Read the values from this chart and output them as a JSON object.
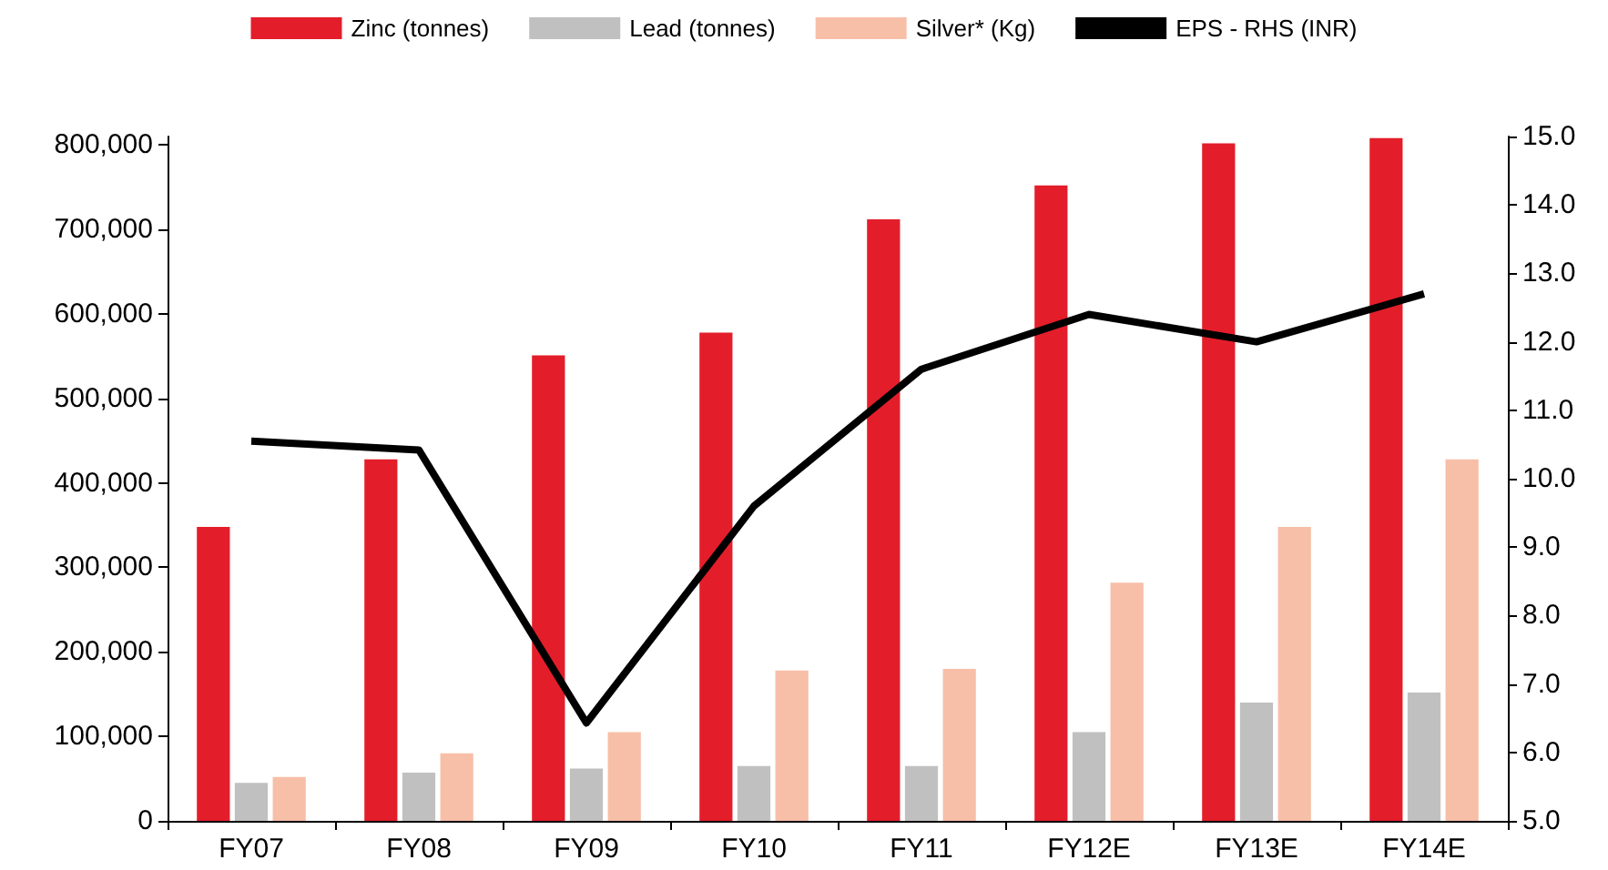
{
  "chart_data": {
    "type": "bar",
    "categories": [
      "FY07",
      "FY08",
      "FY09",
      "FY10",
      "FY11",
      "FY12E",
      "FY13E",
      "FY14E"
    ],
    "series": [
      {
        "name": "Zinc (tonnes)",
        "color": "#e31e2a",
        "values": [
          348000,
          428000,
          551000,
          578000,
          712000,
          752000,
          802000,
          808000
        ]
      },
      {
        "name": "Lead (tonnes)",
        "color": "#c0c0c0",
        "values": [
          45000,
          57000,
          62000,
          65000,
          65000,
          105000,
          140000,
          152000
        ]
      },
      {
        "name": "Silver* (Kg)",
        "color": "#f7bfa8",
        "values": [
          52000,
          80000,
          105000,
          178000,
          180000,
          282000,
          348000,
          428000
        ]
      },
      {
        "name": "EPS - RHS (INR)",
        "color": "#000000",
        "type": "line",
        "axis": "y2",
        "values": [
          10.55,
          10.42,
          6.43,
          9.6,
          11.6,
          12.4,
          12.0,
          12.7
        ]
      }
    ],
    "ylim": [
      0,
      810000
    ],
    "yticks": [
      {
        "value": 0,
        "label": "0"
      },
      {
        "value": 100000,
        "label": "100,000"
      },
      {
        "value": 200000,
        "label": "200,000"
      },
      {
        "value": 300000,
        "label": "300,000"
      },
      {
        "value": 400000,
        "label": "400,000"
      },
      {
        "value": 500000,
        "label": "500,000"
      },
      {
        "value": 600000,
        "label": "600,000"
      },
      {
        "value": 700000,
        "label": "700,000"
      },
      {
        "value": 800000,
        "label": "800,000"
      }
    ],
    "y2lim": [
      5,
      15
    ],
    "y2ticks": [
      {
        "value": 5,
        "label": "5.0"
      },
      {
        "value": 6,
        "label": "6.0"
      },
      {
        "value": 7,
        "label": "7.0"
      },
      {
        "value": 8,
        "label": "8.0"
      },
      {
        "value": 9,
        "label": "9.0"
      },
      {
        "value": 10,
        "label": "10.0"
      },
      {
        "value": 11,
        "label": "11.0"
      },
      {
        "value": 12,
        "label": "12.0"
      },
      {
        "value": 13,
        "label": "13.0"
      },
      {
        "value": 14,
        "label": "14.0"
      },
      {
        "value": 15,
        "label": "15.0"
      }
    ],
    "grid": false,
    "legend": "top",
    "marker": "none"
  }
}
